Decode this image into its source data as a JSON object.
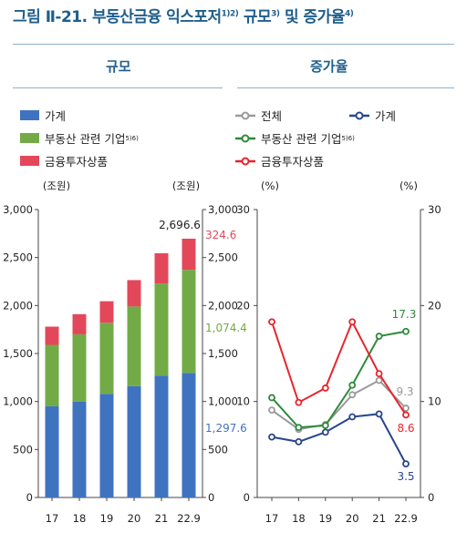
{
  "figure": {
    "title_main": "그림 Ⅱ-21. 부동산금융 익스포저",
    "title_sup1": "1)2)",
    "title_part2": " 규모",
    "title_sup2": "3)",
    "title_part3": " 및 증가율",
    "title_sup3": "4)",
    "left_section": "규모",
    "right_section": "증가율"
  },
  "colors": {
    "household": "#3f73c0",
    "realestate": "#72ab46",
    "financial": "#e3485a",
    "total_line": "#9a9a9a",
    "household_line": "#28468e",
    "realestate_line": "#2f8a3c",
    "financial_line": "#e8252f",
    "title": "#1f5e8c"
  },
  "chart_data": [
    {
      "type": "bar",
      "stacked": true,
      "categories": [
        "17",
        "18",
        "19",
        "20",
        "21",
        "22.9"
      ],
      "series": [
        {
          "name": "가계",
          "values": [
            950,
            1000,
            1080,
            1160,
            1270,
            1297.6
          ]
        },
        {
          "name": "부동산 관련 기업",
          "name_sup": "5)6)",
          "values": [
            640,
            700,
            740,
            830,
            960,
            1074.4
          ]
        },
        {
          "name": "금융투자상품",
          "values": [
            190,
            210,
            225,
            275,
            315,
            324.6
          ]
        }
      ],
      "total_label": "2,696.6",
      "last_labels": [
        "1,297.6",
        "1,074.4",
        "324.6"
      ],
      "ylabel_left": "(조원)",
      "ylabel_right": "(조원)",
      "yticks": [
        "0",
        "500",
        "1,000",
        "1,500",
        "2,000",
        "2,500",
        "3,000"
      ],
      "ylim": [
        0,
        3000
      ]
    },
    {
      "type": "line",
      "categories": [
        "17",
        "18",
        "19",
        "20",
        "21",
        "22.9"
      ],
      "series": [
        {
          "name": "전체",
          "values": [
            9.1,
            7.1,
            7.6,
            10.7,
            12.2,
            9.3
          ]
        },
        {
          "name": "가계",
          "values": [
            6.3,
            5.8,
            6.8,
            8.4,
            8.7,
            3.5
          ]
        },
        {
          "name": "부동산 관련 기업",
          "name_sup": "5)6)",
          "values": [
            10.4,
            7.3,
            7.5,
            11.7,
            16.8,
            17.3
          ]
        },
        {
          "name": "금융투자상품",
          "values": [
            18.3,
            9.9,
            11.4,
            18.3,
            12.9,
            8.6
          ]
        }
      ],
      "last_labels": [
        "9.3",
        "3.5",
        "17.3",
        "8.6"
      ],
      "ylabel_left": "(%)",
      "ylabel_right": "(%)",
      "yticks": [
        "0",
        "10",
        "20",
        "30"
      ],
      "ylim": [
        0,
        30
      ]
    }
  ]
}
